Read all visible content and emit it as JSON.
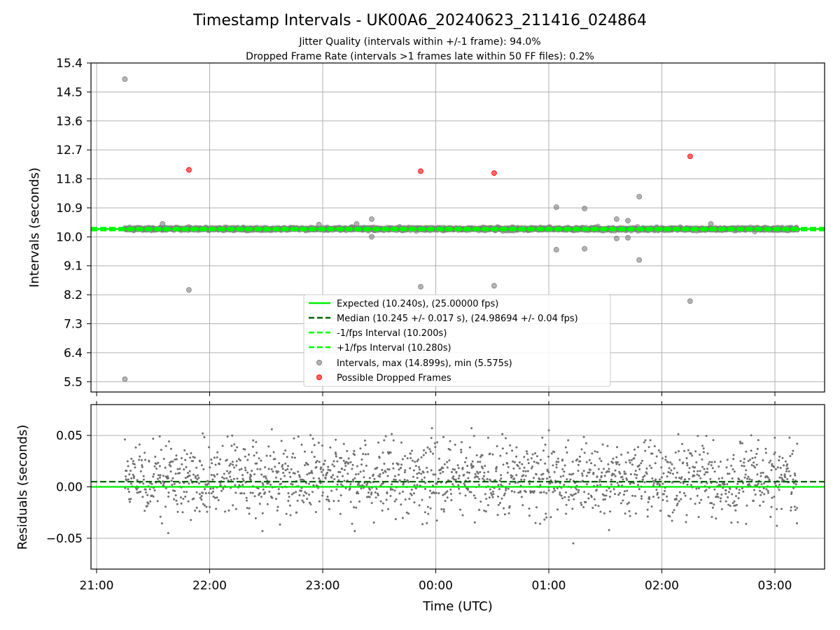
{
  "figure": {
    "title": "Timestamp Intervals - UK00A6_20240623_211416_024864",
    "subtitle_1": "Jitter Quality (intervals within +/-1 frame): 94.0%",
    "subtitle_2": "Dropped Frame Rate (intervals >1 frames late within 50 FF files): 0.2%"
  },
  "colors": {
    "expected": "#00ee00",
    "median": "#006400",
    "bounds": "#00ff00",
    "intervals": "#808080",
    "dropped": "#ff0000",
    "grid": "#b0b0b0",
    "residual_points": "#6e6e6e"
  },
  "chart_data": [
    {
      "type": "scatter",
      "ylabel": "Intervals (seconds)",
      "xlabel": "",
      "ylim": [
        5.18,
        15.4
      ],
      "xlim": [
        "21:00",
        "03:14"
      ],
      "yticks": [
        "5.5",
        "6.4",
        "7.3",
        "8.2",
        "9.1",
        "10.0",
        "10.9",
        "11.8",
        "12.7",
        "13.6",
        "14.5",
        "15.4"
      ],
      "grid": true,
      "legend_position": "lower center",
      "lines": [
        {
          "name": "Expected (10.240s), (25.00000 fps)",
          "y": 10.24,
          "style": "solid",
          "color": "#00ee00"
        },
        {
          "name": "Median (10.245 +/- 0.017 s), (24.98694 +/- 0.04 fps)",
          "y": 10.245,
          "style": "dashed",
          "color": "#006400"
        },
        {
          "name": "-1/fps Interval (10.200s)",
          "y": 10.2,
          "style": "dashed",
          "color": "#00ff00"
        },
        {
          "name": "+1/fps Interval (10.280s)",
          "y": 10.28,
          "style": "dashed",
          "color": "#00ff00"
        }
      ],
      "series": [
        {
          "name": "Intervals, max (14.899s), min (5.575s)",
          "color": "#808080",
          "baseline": 10.245,
          "x_range": [
            "21:15",
            "03:12"
          ],
          "count": 1700,
          "outliers": [
            {
              "x": "21:15",
              "y": 14.899
            },
            {
              "x": "21:15",
              "y": 5.575
            },
            {
              "x": "21:49",
              "y": 8.35
            },
            {
              "x": "23:52",
              "y": 8.45
            },
            {
              "x": "00:31",
              "y": 8.48
            },
            {
              "x": "01:04",
              "y": 10.92
            },
            {
              "x": "01:04",
              "y": 9.6
            },
            {
              "x": "01:19",
              "y": 10.88
            },
            {
              "x": "01:19",
              "y": 9.63
            },
            {
              "x": "01:36",
              "y": 10.55
            },
            {
              "x": "01:36",
              "y": 9.95
            },
            {
              "x": "01:42",
              "y": 10.5
            },
            {
              "x": "01:42",
              "y": 9.97
            },
            {
              "x": "01:48",
              "y": 11.25
            },
            {
              "x": "01:48",
              "y": 9.28
            },
            {
              "x": "02:15",
              "y": 8.0
            },
            {
              "x": "23:26",
              "y": 10.55
            },
            {
              "x": "23:26",
              "y": 10.0
            },
            {
              "x": "21:35",
              "y": 10.4
            },
            {
              "x": "23:18",
              "y": 10.4
            },
            {
              "x": "22:58",
              "y": 10.38
            },
            {
              "x": "02:26",
              "y": 10.4
            }
          ]
        },
        {
          "name": "Possible Dropped Frames",
          "color": "#ff0000",
          "points": [
            {
              "x": "21:49",
              "y": 12.08
            },
            {
              "x": "23:52",
              "y": 12.04
            },
            {
              "x": "00:31",
              "y": 11.98
            },
            {
              "x": "02:15",
              "y": 12.5
            }
          ]
        }
      ]
    },
    {
      "type": "scatter",
      "ylabel": "Residuals (seconds)",
      "xlabel": "Time (UTC)",
      "ylim": [
        -0.08,
        0.08
      ],
      "yticks": [
        "−0.05",
        "0.00",
        "0.05"
      ],
      "xticks": [
        "21:00",
        "22:00",
        "23:00",
        "00:00",
        "01:00",
        "02:00",
        "03:00"
      ],
      "grid": true,
      "lines": [
        {
          "name": "Expected",
          "y": 0.0,
          "style": "solid",
          "color": "#00ee00"
        },
        {
          "name": "Median",
          "y": 0.005,
          "style": "dashed",
          "color": "#006400"
        }
      ],
      "series": [
        {
          "name": "Residuals",
          "color": "#6e6e6e",
          "x_range": [
            "21:15",
            "03:12"
          ],
          "count": 1700,
          "center": 0.008,
          "spread": 0.018,
          "extremes": [
            {
              "x": "21:15",
              "y": 0.046
            },
            {
              "x": "21:38",
              "y": -0.045
            },
            {
              "x": "22:28",
              "y": -0.043
            },
            {
              "x": "22:33",
              "y": 0.056
            },
            {
              "x": "23:58",
              "y": 0.057
            },
            {
              "x": "00:19",
              "y": 0.057
            },
            {
              "x": "01:00",
              "y": 0.055
            },
            {
              "x": "01:13",
              "y": -0.055
            },
            {
              "x": "01:32",
              "y": -0.042
            },
            {
              "x": "23:17",
              "y": -0.043
            }
          ]
        }
      ]
    }
  ]
}
